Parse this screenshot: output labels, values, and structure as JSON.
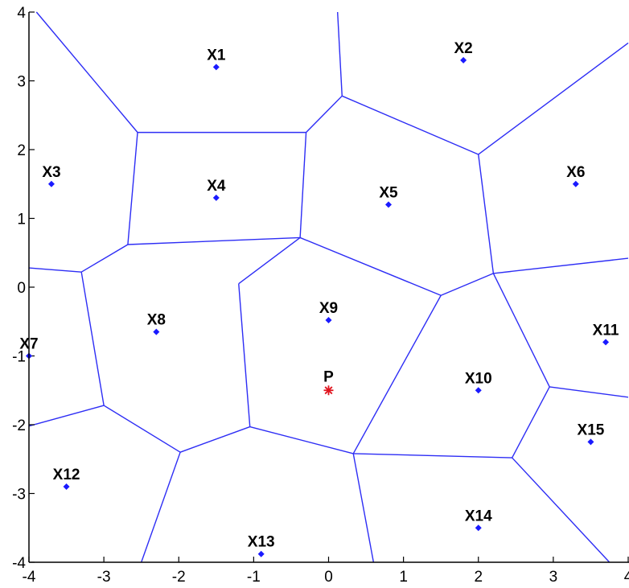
{
  "chart_data": {
    "type": "scatter",
    "title": "",
    "xlabel": "",
    "ylabel": "",
    "xlim": [
      -4,
      4
    ],
    "ylim": [
      -4,
      4
    ],
    "grid": false,
    "x_ticks": [
      -4,
      -3,
      -2,
      -1,
      0,
      1,
      2,
      3,
      4
    ],
    "y_ticks": [
      4,
      3,
      2,
      1,
      0,
      -1,
      -2,
      -3,
      -4
    ],
    "points": [
      {
        "label": "X1",
        "x": -1.5,
        "y": 3.2
      },
      {
        "label": "X2",
        "x": 1.8,
        "y": 3.3
      },
      {
        "label": "X3",
        "x": -3.7,
        "y": 1.5
      },
      {
        "label": "X4",
        "x": -1.5,
        "y": 1.3
      },
      {
        "label": "X5",
        "x": 0.8,
        "y": 1.2
      },
      {
        "label": "X6",
        "x": 3.3,
        "y": 1.5
      },
      {
        "label": "X7",
        "x": -4.0,
        "y": -1.0
      },
      {
        "label": "X8",
        "x": -2.3,
        "y": -0.65
      },
      {
        "label": "X9",
        "x": 0.0,
        "y": -0.48
      },
      {
        "label": "X10",
        "x": 2.0,
        "y": -1.5
      },
      {
        "label": "X11",
        "x": 3.7,
        "y": -0.8
      },
      {
        "label": "X12",
        "x": -3.5,
        "y": -2.9
      },
      {
        "label": "X13",
        "x": -0.9,
        "y": -3.88
      },
      {
        "label": "X14",
        "x": 2.0,
        "y": -3.5
      },
      {
        "label": "X15",
        "x": 3.5,
        "y": -2.25
      }
    ],
    "query_point": {
      "label": "P",
      "x": 0.0,
      "y": -1.5
    },
    "voronoi_edges": [
      [
        [
          -3.9,
          4.0
        ],
        [
          -2.55,
          2.25
        ]
      ],
      [
        [
          -2.55,
          2.25
        ],
        [
          -0.3,
          2.25
        ]
      ],
      [
        [
          -0.3,
          2.25
        ],
        [
          0.18,
          2.78
        ]
      ],
      [
        [
          0.18,
          2.78
        ],
        [
          0.12,
          4.0
        ]
      ],
      [
        [
          0.18,
          2.78
        ],
        [
          2.0,
          1.93
        ]
      ],
      [
        [
          2.0,
          1.93
        ],
        [
          4.0,
          3.55
        ]
      ],
      [
        [
          2.0,
          1.93
        ],
        [
          2.2,
          0.2
        ]
      ],
      [
        [
          2.2,
          0.2
        ],
        [
          4.0,
          0.42
        ]
      ],
      [
        [
          2.2,
          0.2
        ],
        [
          1.5,
          -0.12
        ]
      ],
      [
        [
          -0.3,
          2.25
        ],
        [
          -0.38,
          0.72
        ]
      ],
      [
        [
          -0.38,
          0.72
        ],
        [
          -2.68,
          0.62
        ]
      ],
      [
        [
          -2.55,
          2.25
        ],
        [
          -2.68,
          0.62
        ]
      ],
      [
        [
          -2.68,
          0.62
        ],
        [
          -3.3,
          0.22
        ]
      ],
      [
        [
          -3.3,
          0.22
        ],
        [
          -4.0,
          0.28
        ]
      ],
      [
        [
          -0.38,
          0.72
        ],
        [
          1.5,
          -0.12
        ]
      ],
      [
        [
          -0.38,
          0.72
        ],
        [
          -1.2,
          0.05
        ]
      ],
      [
        [
          -1.2,
          0.05
        ],
        [
          -1.05,
          -2.03
        ]
      ],
      [
        [
          -3.3,
          0.22
        ],
        [
          -3.0,
          -1.72
        ]
      ],
      [
        [
          -3.0,
          -1.72
        ],
        [
          -4.0,
          -2.02
        ]
      ],
      [
        [
          -3.0,
          -1.72
        ],
        [
          -1.98,
          -2.4
        ]
      ],
      [
        [
          -1.98,
          -2.4
        ],
        [
          -1.05,
          -2.03
        ]
      ],
      [
        [
          -1.05,
          -2.03
        ],
        [
          0.33,
          -2.42
        ]
      ],
      [
        [
          -1.98,
          -2.4
        ],
        [
          -2.5,
          -4.0
        ]
      ],
      [
        [
          0.33,
          -2.42
        ],
        [
          0.6,
          -4.0
        ]
      ],
      [
        [
          0.33,
          -2.42
        ],
        [
          2.45,
          -2.48
        ]
      ],
      [
        [
          2.45,
          -2.48
        ],
        [
          2.95,
          -1.45
        ]
      ],
      [
        [
          2.95,
          -1.45
        ],
        [
          4.0,
          -1.6
        ]
      ],
      [
        [
          2.2,
          0.2
        ],
        [
          2.95,
          -1.45
        ]
      ],
      [
        [
          1.5,
          -0.12
        ],
        [
          0.33,
          -2.42
        ]
      ],
      [
        [
          2.45,
          -2.48
        ],
        [
          3.75,
          -4.0
        ]
      ]
    ]
  }
}
